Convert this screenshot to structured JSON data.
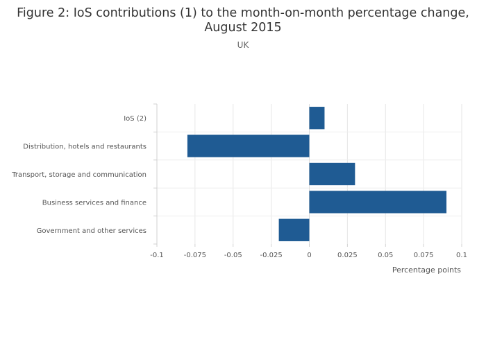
{
  "chart_data": {
    "type": "bar",
    "orientation": "horizontal",
    "title_line1": "Figure 2: IoS contributions (1) to the month-on-month percentage change,",
    "title_line2": "August 2015",
    "subtitle": "UK",
    "xlabel": "Percentage points",
    "ylabel": "",
    "categories": [
      "IoS (2)",
      "Distribution, hotels and restaurants",
      "Transport, storage and communication",
      "Business services and finance",
      "Government and other services"
    ],
    "values": [
      0.01,
      -0.08,
      0.03,
      0.09,
      -0.02
    ],
    "xlim": [
      -0.1,
      0.1
    ],
    "xticks": [
      -0.1,
      -0.075,
      -0.05,
      -0.025,
      0,
      0.025,
      0.05,
      0.075,
      0.1
    ],
    "xtick_labels": [
      "-0.1",
      "-0.075",
      "-0.05",
      "-0.025",
      "0",
      "0.025",
      "0.05",
      "0.075",
      "0.1"
    ],
    "grid": true,
    "legend": "none",
    "bar_color": "#1f5b93"
  }
}
